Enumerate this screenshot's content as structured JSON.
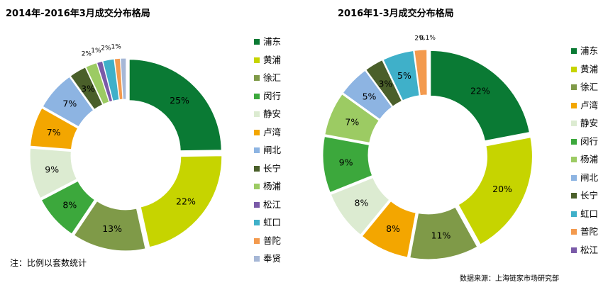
{
  "chart_data": [
    {
      "type": "pie",
      "title": "2014年-2016年3月成交分布格局",
      "categories": [
        "浦东",
        "黄浦",
        "徐汇",
        "闵行",
        "静安",
        "卢湾",
        "闸北",
        "长宁",
        "杨浦",
        "松江",
        "虹口",
        "普陀",
        "奉贤"
      ],
      "values": [
        25,
        22,
        13,
        8,
        9,
        7,
        7,
        3,
        2,
        1,
        2,
        1,
        1
      ],
      "labels": [
        "25%",
        "22%",
        "13%",
        "8%",
        "9%",
        "7%",
        "7%",
        "3%",
        "2%",
        "1%",
        "2%",
        "1%",
        ""
      ],
      "colors": [
        "#0a7a34",
        "#c6d400",
        "#7f9a48",
        "#3ca83c",
        "#dcebd1",
        "#f3a600",
        "#8db4e2",
        "#4a5f2a",
        "#9ccb63",
        "#7a5aa8",
        "#3fb0c9",
        "#f39a4e",
        "#a6b7d6"
      ],
      "legend_position": "right"
    },
    {
      "type": "pie",
      "title": "2016年1-3月成交分布格局",
      "categories": [
        "浦东",
        "黄浦",
        "徐汇",
        "卢湾",
        "静安",
        "闵行",
        "杨浦",
        "闸北",
        "长宁",
        "虹口",
        "普陀",
        "松江"
      ],
      "values": [
        22,
        20,
        11,
        8,
        8,
        9,
        7,
        5,
        3,
        5,
        2,
        0.1
      ],
      "labels": [
        "22%",
        "20%",
        "11%",
        "8%",
        "8%",
        "9%",
        "7%",
        "5%",
        "3%",
        "5%",
        "2%",
        "0.1%"
      ],
      "colors": [
        "#0a7a34",
        "#c6d400",
        "#7f9a48",
        "#f3a600",
        "#dcebd1",
        "#3ca83c",
        "#9ccb63",
        "#8db4e2",
        "#4a5f2a",
        "#3fb0c9",
        "#f39a4e",
        "#7a5aa8"
      ],
      "legend_position": "right"
    }
  ],
  "note": "注：比例以套数统计",
  "source": "数据来源：上海链家市场研究部"
}
